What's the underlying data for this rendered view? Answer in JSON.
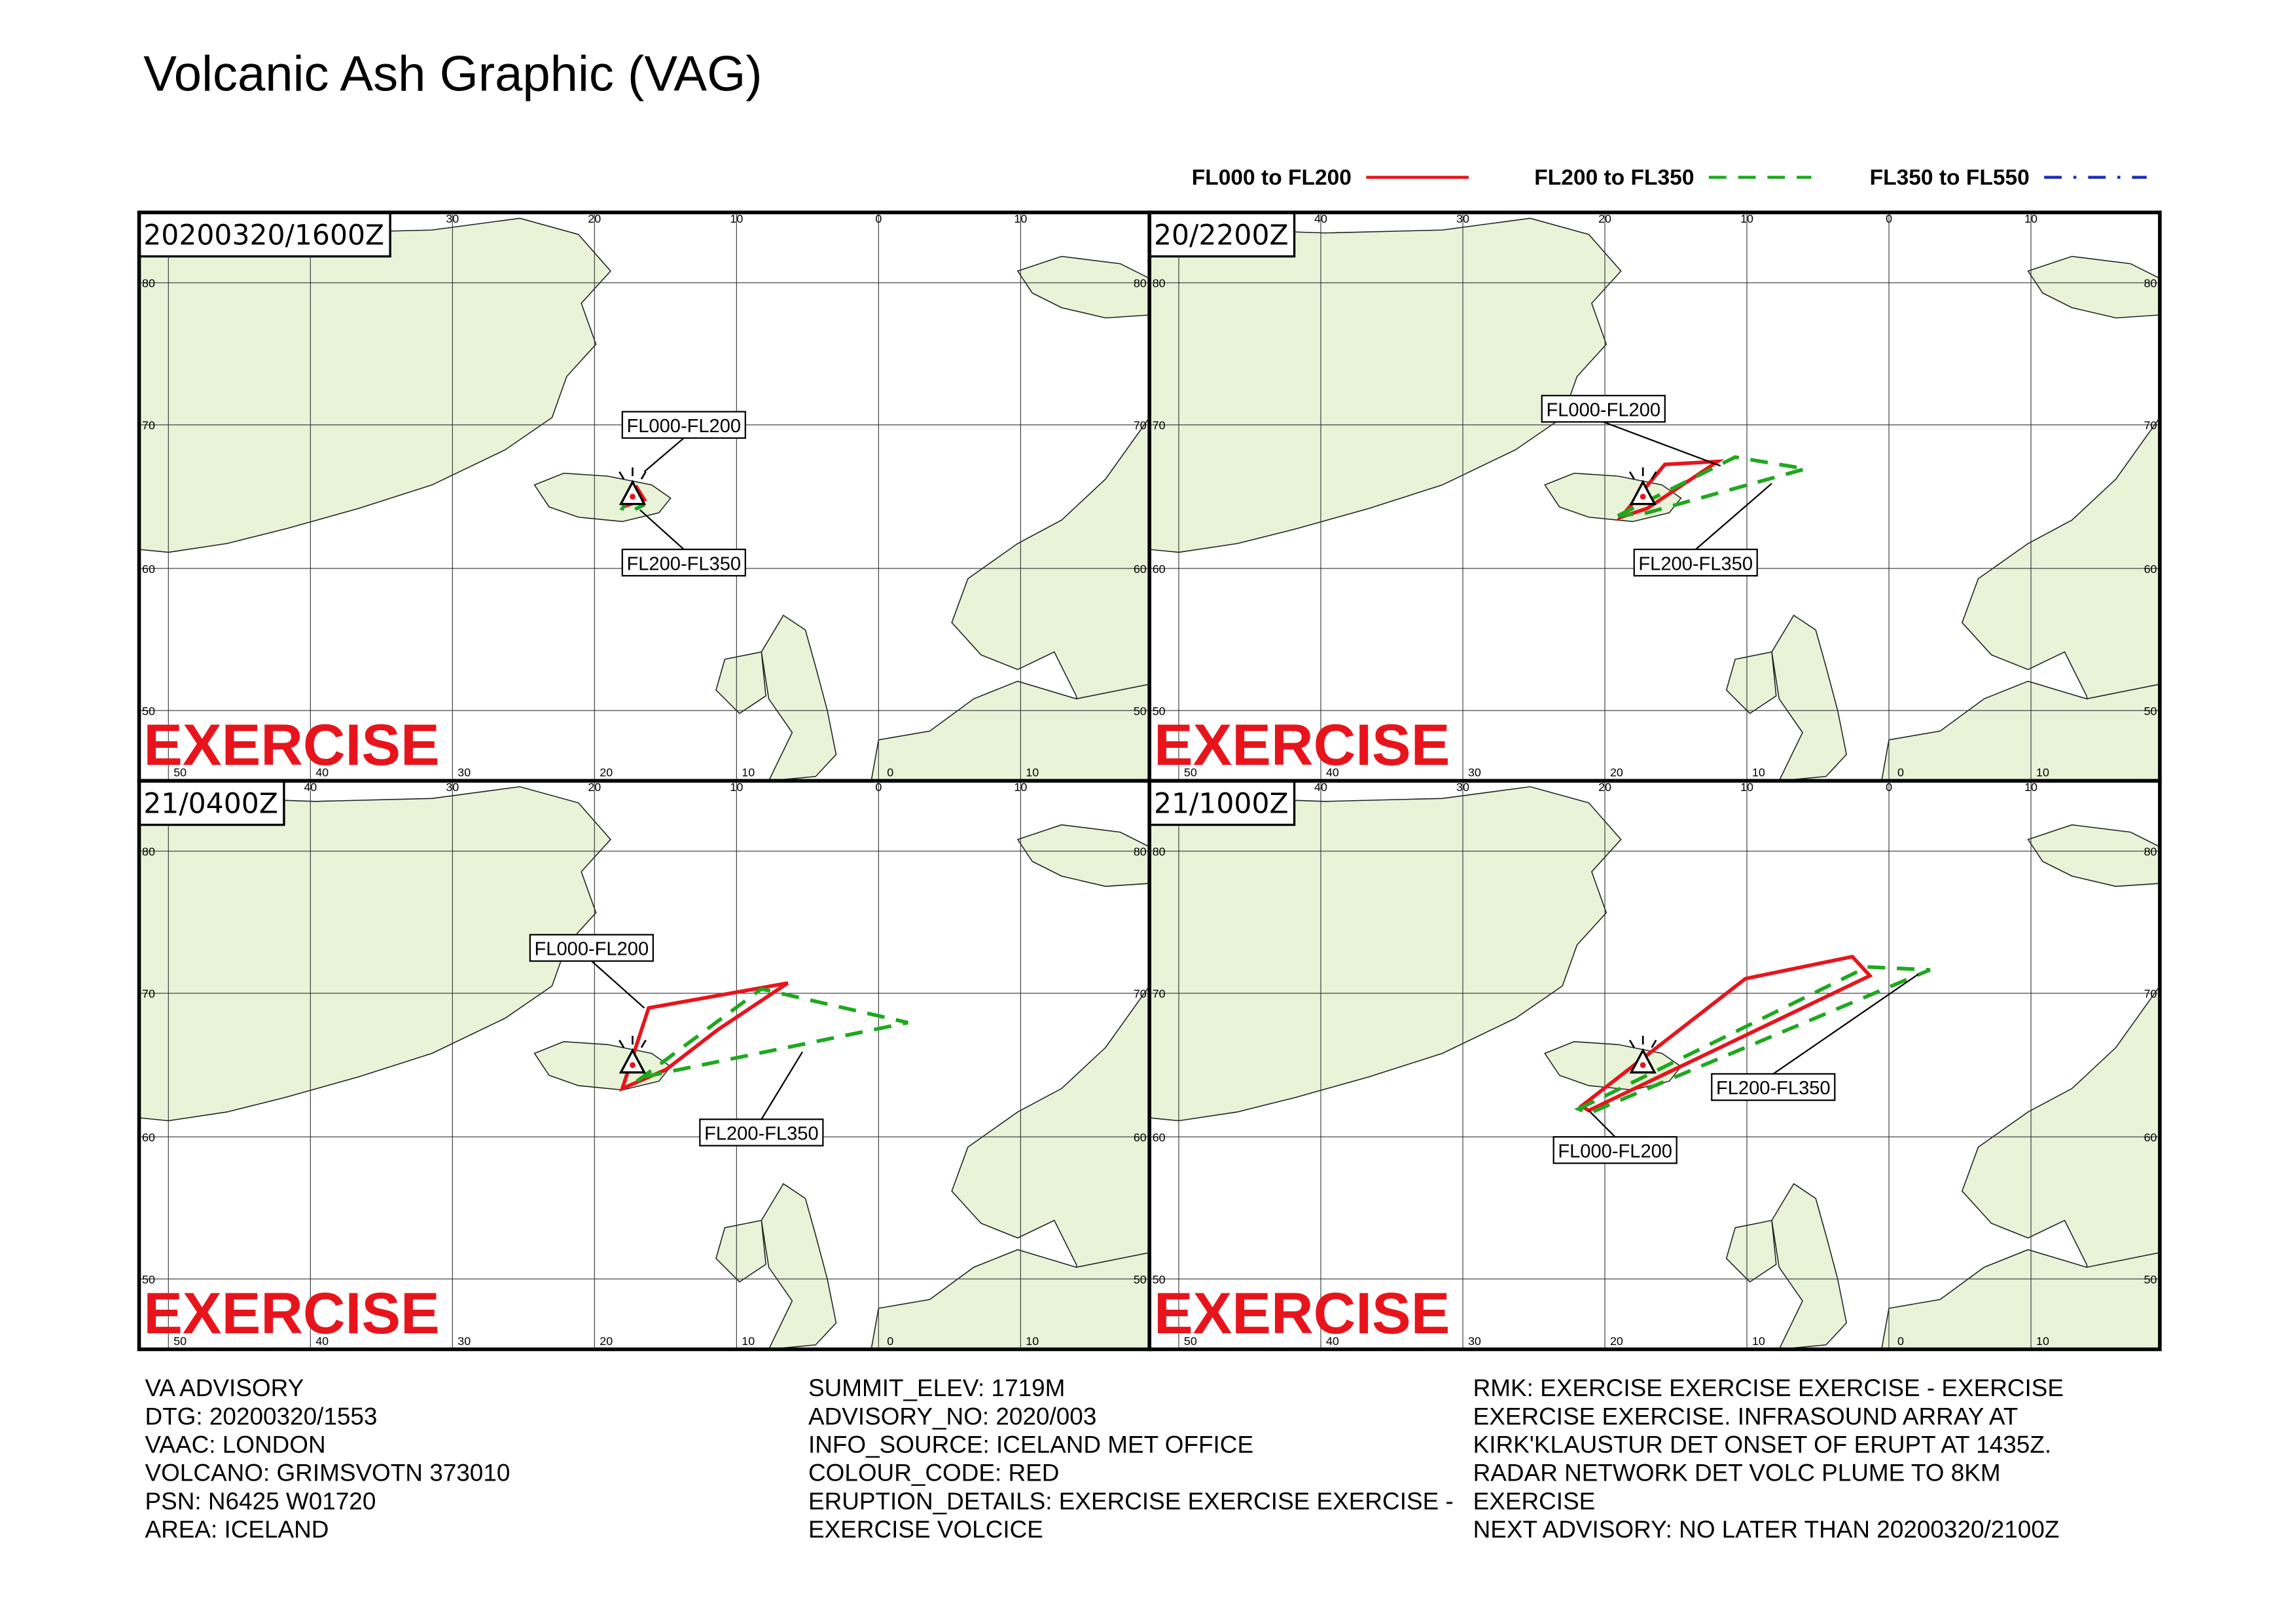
{
  "header": {
    "title": "Volcanic Ash Graphic (VAG)"
  },
  "legend": [
    {
      "label": "FL000 to FL200",
      "color": "#e8141c",
      "style": "solid"
    },
    {
      "label": "FL200 to FL350",
      "color": "#1ea81e",
      "style": "dashed"
    },
    {
      "label": "FL350 to FL550",
      "color": "#1e2fb8",
      "style": "dashdot"
    }
  ],
  "grid": {
    "lon_top": [
      "40",
      "30",
      "20",
      "10",
      "0",
      "10"
    ],
    "lon_bottom": [
      "50",
      "40",
      "30",
      "20",
      "10",
      "0",
      "10"
    ],
    "lat": [
      "80",
      "70",
      "60",
      "50"
    ]
  },
  "panels": [
    {
      "time": "20200320/1600Z",
      "watermark": "EXERCISE",
      "callouts": [
        "FL000-FL200",
        "FL200-FL350"
      ]
    },
    {
      "time": "20/2200Z",
      "watermark": "EXERCISE",
      "callouts": [
        "FL000-FL200",
        "FL200-FL350"
      ]
    },
    {
      "time": "21/0400Z",
      "watermark": "EXERCISE",
      "callouts": [
        "FL000-FL200",
        "FL200-FL350"
      ]
    },
    {
      "time": "21/1000Z",
      "watermark": "EXERCISE",
      "callouts": [
        "FL000-FL200",
        "FL200-FL350"
      ]
    }
  ],
  "advisory": [
    [
      "VA ADVISORY",
      "DTG: 20200320/1553",
      "VAAC: LONDON",
      "VOLCANO: GRIMSVOTN 373010",
      "PSN: N6425 W01720",
      "AREA: ICELAND"
    ],
    [
      "SUMMIT_ELEV: 1719M",
      "ADVISORY_NO: 2020/003",
      "INFO_SOURCE: ICELAND MET OFFICE",
      "COLOUR_CODE: RED",
      "ERUPTION_DETAILS: EXERCISE EXERCISE EXERCISE -",
      "EXERCISE VOLCICE"
    ],
    [
      "RMK: EXERCISE EXERCISE EXERCISE - EXERCISE",
      "EXERCISE EXERCISE. INFRASOUND ARRAY AT",
      "KIRK'KLAUSTUR DET ONSET OF ERUPT AT 1435Z.",
      "RADAR NETWORK DET VOLC PLUME TO 8KM",
      "EXERCISE",
      "NEXT ADVISORY: NO LATER THAN 20200320/2100Z"
    ]
  ]
}
